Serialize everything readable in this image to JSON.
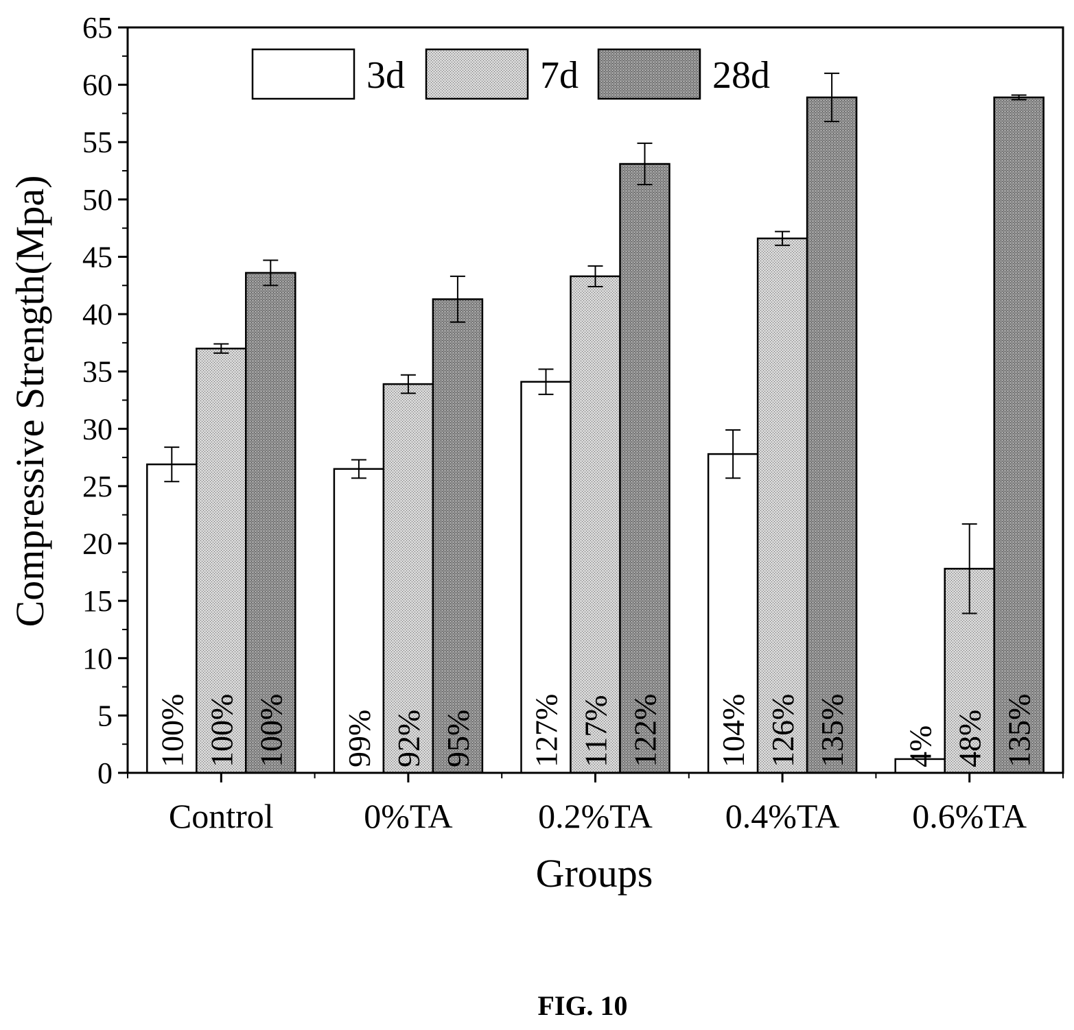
{
  "chart_data": {
    "type": "bar",
    "ylabel": "Compressive Strength(Mpa)",
    "xlabel": "Groups",
    "ylim": [
      0,
      65
    ],
    "ytick_step": 5,
    "grid": false,
    "legend_position": "top",
    "categories": [
      "Control",
      "0%TA",
      "0.2%TA",
      "0.4%TA",
      "0.6%TA"
    ],
    "series": [
      {
        "name": "3d",
        "fill": "#ffffff",
        "values": [
          26.9,
          26.5,
          34.1,
          27.8,
          1.2
        ],
        "errors": [
          1.5,
          0.8,
          1.1,
          2.1,
          0
        ],
        "labels": [
          "100%",
          "99%",
          "127%",
          "104%",
          "4%"
        ]
      },
      {
        "name": "7d",
        "fill": "#c4c4c4",
        "values": [
          37.0,
          33.9,
          43.3,
          46.6,
          17.8
        ],
        "errors": [
          0.4,
          0.8,
          0.9,
          0.6,
          3.9
        ],
        "labels": [
          "100%",
          "92%",
          "117%",
          "126%",
          "48%"
        ]
      },
      {
        "name": "28d",
        "fill": "#8f8f8f",
        "values": [
          43.6,
          41.3,
          53.1,
          58.9,
          58.9
        ],
        "errors": [
          1.1,
          2.0,
          1.8,
          2.1,
          0.2
        ],
        "labels": [
          "100%",
          "95%",
          "122%",
          "135%",
          "135%"
        ]
      }
    ]
  },
  "caption": "FIG. 10"
}
